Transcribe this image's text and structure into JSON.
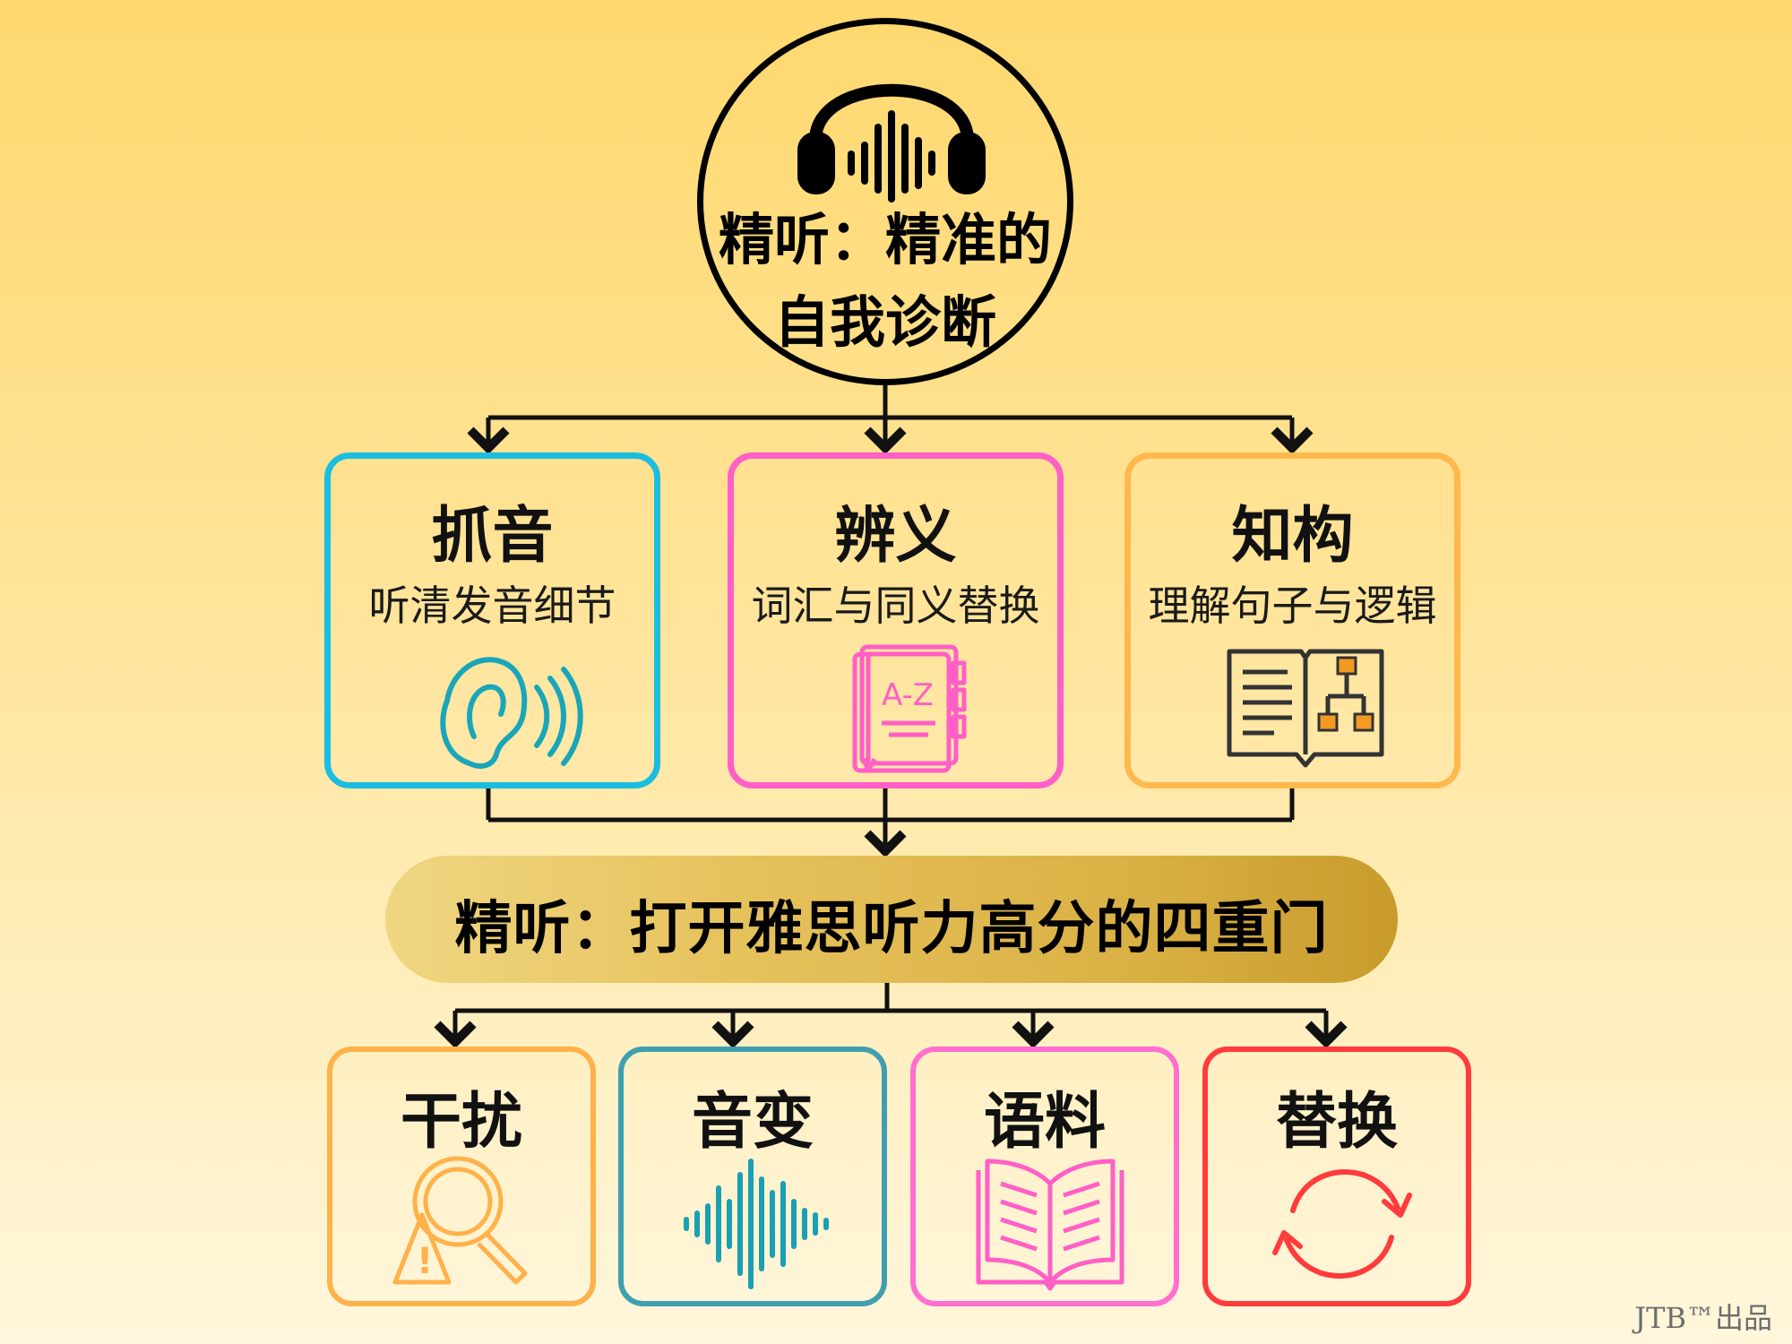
{
  "hub": {
    "title": "精听：精准的\n自我诊断",
    "icon": "headphones-soundwave-icon"
  },
  "top_cards": [
    {
      "title": "抓音",
      "subtitle": "听清发音细节",
      "icon": "ear-sound-icon",
      "color": "#1bbde0"
    },
    {
      "title": "辨义",
      "subtitle": "词汇与同义替换",
      "icon": "dictionary-az-icon",
      "color": "#ff5fc7"
    },
    {
      "title": "知构",
      "subtitle": "理解句子与逻辑",
      "icon": "book-structure-icon",
      "color": "#ffb84e"
    }
  ],
  "banner": {
    "text": "精听：打开雅思听力高分的四重门"
  },
  "bottom_cards": [
    {
      "title": "干扰",
      "icon": "magnifier-warning-icon",
      "color": "#ffb14a"
    },
    {
      "title": "音变",
      "icon": "soundwave-icon",
      "color": "#3f9fb0"
    },
    {
      "title": "语料",
      "icon": "open-book-icon",
      "color": "#ff6ed0"
    },
    {
      "title": "替换",
      "icon": "refresh-cycle-icon",
      "color": "#ff3b3b"
    }
  ],
  "credit": "JTB™出品"
}
